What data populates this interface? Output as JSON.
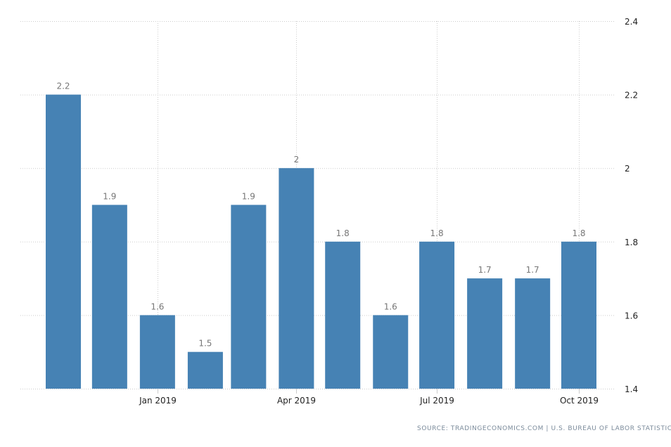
{
  "chart_data": {
    "type": "bar",
    "x": [
      "2018-11-01",
      "2018-12-01",
      "2019-01-01",
      "2019-02-01",
      "2019-03-01",
      "2019-04-01",
      "2019-05-01",
      "2019-06-01",
      "2019-07-01",
      "2019-08-01",
      "2019-09-01",
      "2019-10-01"
    ],
    "values": [
      2.2,
      1.9,
      1.6,
      1.5,
      1.9,
      2,
      1.8,
      1.6,
      1.8,
      1.7,
      1.7,
      1.8
    ],
    "data_labels": [
      "2.2",
      "1.9",
      "1.6",
      "1.5",
      "1.9",
      "2",
      "1.8",
      "1.6",
      "1.8",
      "1.7",
      "1.7",
      "1.8"
    ],
    "x_ticks": [
      {
        "date": "2019-01-01",
        "label": "Jan 2019"
      },
      {
        "date": "2019-04-01",
        "label": "Apr 2019"
      },
      {
        "date": "2019-07-01",
        "label": "Jul 2019"
      },
      {
        "date": "2019-10-01",
        "label": "Oct 2019"
      }
    ],
    "y_ticks": [
      1.4,
      1.6,
      1.8,
      2,
      2.2,
      2.4
    ],
    "ylim": [
      1.4,
      2.4
    ],
    "y_axis_position": "right",
    "grid": true,
    "bar_color": "#4682b4",
    "title": "",
    "xlabel": "",
    "ylabel": ""
  },
  "source": "SOURCE: TRADINGECONOMICS.COM | U.S. BUREAU OF LABOR STATISTICS"
}
